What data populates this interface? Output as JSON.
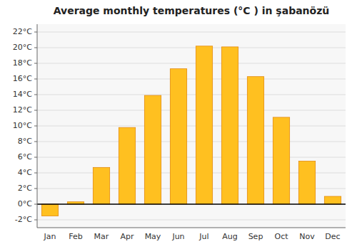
{
  "chart_data": {
    "type": "bar",
    "title": "Average monthly temperatures (°C ) in şabanözü",
    "categories": [
      "Jan",
      "Feb",
      "Mar",
      "Apr",
      "May",
      "Jun",
      "Jul",
      "Aug",
      "Sep",
      "Oct",
      "Nov",
      "Dec"
    ],
    "values": [
      -1.5,
      0.3,
      4.7,
      9.8,
      13.9,
      17.3,
      20.2,
      20.1,
      16.3,
      11.1,
      5.5,
      1.0
    ],
    "color": "#FFC020",
    "ylim": [
      -3.0,
      23.0
    ],
    "yticks": [
      {
        "value": -2,
        "label": "-2°C"
      },
      {
        "value": 0,
        "label": "0°C"
      },
      {
        "value": 2,
        "label": "2°C"
      },
      {
        "value": 4,
        "label": "4°C"
      },
      {
        "value": 6,
        "label": "6°C"
      },
      {
        "value": 8,
        "label": "8°C"
      },
      {
        "value": 10,
        "label": "10°C"
      },
      {
        "value": 12,
        "label": "12°C"
      },
      {
        "value": 14,
        "label": "14°C"
      },
      {
        "value": 16,
        "label": "16°C"
      },
      {
        "value": 18,
        "label": "18°C"
      },
      {
        "value": 20,
        "label": "20°C"
      },
      {
        "value": 22,
        "label": "22°C"
      }
    ],
    "grid": true
  }
}
